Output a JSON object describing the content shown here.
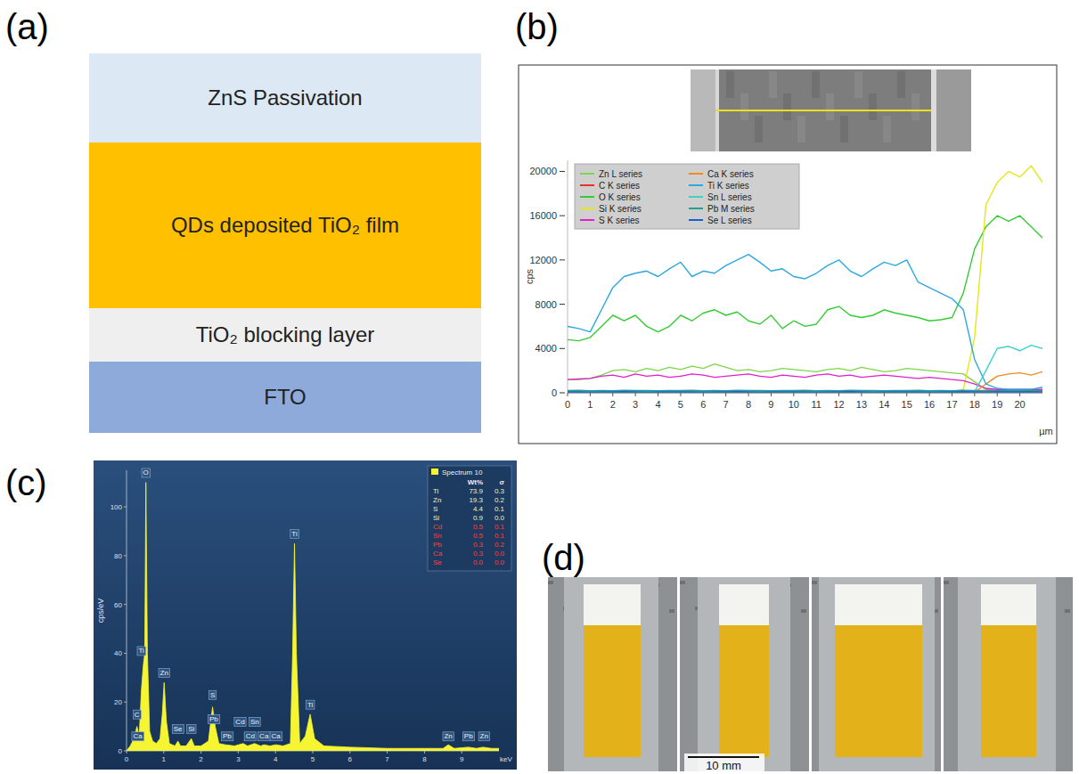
{
  "panel_labels": {
    "a": "(a)",
    "b": "(b)",
    "c": "(c)",
    "d": "(d)"
  },
  "diagram": {
    "layers": [
      {
        "label": "ZnS Passivation",
        "color": "#dce8f4"
      },
      {
        "label": "QDs deposited TiO₂ film",
        "color": "#ffc000"
      },
      {
        "label": "TiO₂ blocking layer",
        "color": "#efefef"
      },
      {
        "label": "FTO",
        "color": "#8eaadb"
      }
    ]
  },
  "chart_data": [
    {
      "type": "line",
      "x_label": "µm",
      "y_label": "cps",
      "x": [
        0,
        0.5,
        1,
        1.5,
        2,
        2.5,
        3,
        3.5,
        4,
        4.5,
        5,
        5.5,
        6,
        6.5,
        7,
        7.5,
        8,
        8.5,
        9,
        9.5,
        10,
        10.5,
        11,
        11.5,
        12,
        12.5,
        13,
        13.5,
        14,
        14.5,
        15,
        15.5,
        16,
        16.5,
        17,
        17.5,
        18,
        18.5,
        19,
        19.5,
        20,
        20.5,
        21
      ],
      "xlim": [
        0,
        21
      ],
      "xticks": [
        0,
        1,
        2,
        3,
        4,
        5,
        6,
        7,
        8,
        9,
        10,
        11,
        12,
        13,
        14,
        15,
        16,
        17,
        18,
        19,
        20
      ],
      "ylim": [
        0,
        21000
      ],
      "yticks": [
        0,
        4000,
        8000,
        12000,
        16000,
        20000
      ],
      "legend": "upper left",
      "series": [
        {
          "name": "Zn L series",
          "color": "#7fd64b",
          "values": [
            1200,
            1200,
            1300,
            1600,
            2000,
            2100,
            1900,
            2200,
            2000,
            2300,
            2100,
            2400,
            2200,
            2600,
            2300,
            2000,
            2100,
            1900,
            2000,
            2200,
            2100,
            2000,
            1900,
            2100,
            2200,
            2000,
            2300,
            2100,
            1900,
            2000,
            2200,
            2100,
            2000,
            1900,
            1800,
            1700,
            1000,
            300,
            200,
            200,
            200,
            200,
            200
          ]
        },
        {
          "name": "C K series",
          "color": "#e8312f",
          "values": [
            150,
            120,
            180,
            140,
            160,
            130,
            170,
            150,
            140,
            160,
            150,
            120,
            180,
            140,
            160,
            130,
            170,
            150,
            140,
            160,
            150,
            120,
            180,
            140,
            160,
            130,
            170,
            150,
            140,
            160,
            150,
            120,
            180,
            140,
            160,
            130,
            170,
            150,
            140,
            160,
            150,
            130,
            160
          ]
        },
        {
          "name": "O K series",
          "color": "#33cc33",
          "values": [
            4800,
            4700,
            5000,
            6000,
            7000,
            6500,
            7000,
            6000,
            5500,
            6000,
            7000,
            6500,
            7200,
            7500,
            7000,
            7300,
            6500,
            6200,
            7000,
            5800,
            6500,
            6000,
            6200,
            7500,
            7800,
            7000,
            6800,
            7000,
            7500,
            7200,
            7000,
            6800,
            6500,
            6600,
            6800,
            9000,
            13000,
            15000,
            16000,
            15500,
            16000,
            15000,
            14000
          ]
        },
        {
          "name": "Si K series",
          "color": "#e6e61a",
          "values": [
            100,
            150,
            120,
            90,
            130,
            100,
            150,
            120,
            90,
            130,
            100,
            150,
            120,
            90,
            130,
            100,
            150,
            120,
            90,
            130,
            100,
            150,
            120,
            90,
            130,
            100,
            150,
            120,
            90,
            130,
            100,
            150,
            120,
            90,
            130,
            300,
            5000,
            17000,
            19000,
            20000,
            19500,
            20500,
            19000
          ]
        },
        {
          "name": "S K series",
          "color": "#e020c8",
          "values": [
            1200,
            1250,
            1300,
            1500,
            1600,
            1400,
            1700,
            1500,
            1600,
            1400,
            1500,
            1700,
            1600,
            1400,
            1500,
            1600,
            1700,
            1500,
            1400,
            1600,
            1500,
            1400,
            1600,
            1700,
            1500,
            1600,
            1400,
            1500,
            1600,
            1500,
            1400,
            1300,
            1400,
            1300,
            1200,
            1100,
            800,
            400,
            300,
            300,
            300,
            300,
            300
          ]
        },
        {
          "name": "Ca K series",
          "color": "#f08c1e",
          "values": [
            50,
            60,
            40,
            50,
            70,
            50,
            40,
            60,
            50,
            50,
            50,
            60,
            40,
            50,
            70,
            50,
            40,
            60,
            50,
            50,
            50,
            60,
            40,
            50,
            70,
            50,
            40,
            60,
            50,
            50,
            50,
            60,
            40,
            50,
            70,
            50,
            40,
            800,
            1500,
            1700,
            1800,
            1600,
            1900
          ]
        },
        {
          "name": "Ti K series",
          "color": "#2ba8e0",
          "values": [
            6000,
            5800,
            5500,
            7500,
            9500,
            10500,
            10800,
            11000,
            10500,
            11200,
            11800,
            10500,
            11000,
            10800,
            11500,
            12000,
            12500,
            11800,
            11000,
            11200,
            10500,
            10300,
            10800,
            11500,
            12000,
            11000,
            10500,
            11200,
            11800,
            11500,
            12000,
            10000,
            9500,
            9000,
            8500,
            7500,
            3000,
            800,
            400,
            300,
            300,
            300,
            500
          ]
        },
        {
          "name": "Sn L series",
          "color": "#3cd2c8",
          "values": [
            100,
            120,
            90,
            110,
            100,
            130,
            90,
            100,
            110,
            100,
            100,
            120,
            90,
            110,
            100,
            130,
            90,
            100,
            110,
            100,
            100,
            120,
            90,
            110,
            100,
            130,
            90,
            100,
            110,
            100,
            100,
            120,
            90,
            110,
            100,
            130,
            90,
            2000,
            4000,
            4200,
            3800,
            4300,
            4000
          ]
        },
        {
          "name": "Pb M series",
          "color": "#20a090",
          "values": [
            200,
            220,
            180,
            210,
            190,
            230,
            200,
            210,
            190,
            200,
            200,
            220,
            180,
            210,
            190,
            230,
            200,
            210,
            190,
            200,
            200,
            220,
            180,
            210,
            190,
            230,
            200,
            210,
            190,
            200,
            200,
            220,
            180,
            210,
            190,
            230,
            200,
            210,
            190,
            200,
            200,
            220,
            180
          ]
        },
        {
          "name": "Se L series",
          "color": "#1a5fd0",
          "values": [
            80,
            90,
            70,
            85,
            75,
            95,
            80,
            70,
            90,
            80,
            80,
            90,
            70,
            85,
            75,
            95,
            80,
            70,
            90,
            80,
            80,
            90,
            70,
            85,
            75,
            95,
            80,
            70,
            90,
            80,
            80,
            90,
            70,
            85,
            75,
            95,
            80,
            70,
            90,
            80,
            80,
            90,
            70
          ]
        }
      ]
    },
    {
      "type": "area",
      "title": "Spectrum 10",
      "x_label": "keV",
      "y_label": "cps/eV",
      "color": "#f5f532",
      "x": [
        0,
        0.1,
        0.2,
        0.28,
        0.34,
        0.4,
        0.45,
        0.49,
        0.52,
        0.56,
        0.62,
        0.7,
        0.8,
        0.9,
        0.96,
        1.01,
        1.07,
        1.15,
        1.3,
        1.38,
        1.45,
        1.6,
        1.74,
        1.82,
        2.0,
        2.2,
        2.31,
        2.38,
        2.48,
        2.65,
        2.9,
        3.13,
        3.25,
        3.44,
        3.6,
        3.69,
        3.85,
        4.01,
        4.2,
        4.4,
        4.46,
        4.51,
        4.56,
        4.65,
        4.8,
        4.93,
        5.05,
        5.3,
        6.0,
        7.0,
        8.0,
        8.5,
        8.64,
        8.8,
        9.18,
        9.4,
        9.57,
        9.8,
        10.0
      ],
      "values": [
        0,
        2,
        5,
        10,
        6,
        25,
        35,
        40,
        110,
        40,
        8,
        4,
        3,
        5,
        15,
        28,
        12,
        3,
        2,
        4,
        2,
        2,
        5,
        2,
        2,
        4,
        18,
        10,
        3,
        2.5,
        2,
        3,
        2,
        3,
        2,
        2.5,
        2,
        2.5,
        2,
        3,
        40,
        85,
        40,
        3,
        6,
        15,
        5,
        2,
        1.5,
        1,
        1,
        1,
        2.5,
        1,
        1.5,
        1,
        1.5,
        1,
        1
      ],
      "xlim": [
        0,
        10
      ],
      "xticks": [
        0,
        1,
        2,
        3,
        4,
        5,
        6,
        7,
        8,
        9
      ],
      "ylim": [
        0,
        115
      ],
      "yticks": [
        0,
        20,
        40,
        60,
        80,
        100
      ],
      "annotations": [
        {
          "label": "C",
          "x": 0.28,
          "y": 14
        },
        {
          "label": "Ca",
          "x": 0.3,
          "y": 5
        },
        {
          "label": "Ti",
          "x": 0.4,
          "y": 40
        },
        {
          "label": "O",
          "x": 0.52,
          "y": 113
        },
        {
          "label": "Zn",
          "x": 1.01,
          "y": 31
        },
        {
          "label": "Se",
          "x": 1.38,
          "y": 8
        },
        {
          "label": "Si",
          "x": 1.74,
          "y": 8
        },
        {
          "label": "S",
          "x": 2.31,
          "y": 22
        },
        {
          "label": "Pb",
          "x": 2.34,
          "y": 12
        },
        {
          "label": "Pb",
          "x": 2.7,
          "y": 5
        },
        {
          "label": "Cd",
          "x": 3.05,
          "y": 11
        },
        {
          "label": "Cd",
          "x": 3.32,
          "y": 5
        },
        {
          "label": "Sn",
          "x": 3.44,
          "y": 11
        },
        {
          "label": "Ca",
          "x": 3.69,
          "y": 5
        },
        {
          "label": "Ca",
          "x": 4.01,
          "y": 5
        },
        {
          "label": "Ti",
          "x": 4.51,
          "y": 88
        },
        {
          "label": "Ti",
          "x": 4.93,
          "y": 18
        },
        {
          "label": "Zn",
          "x": 8.64,
          "y": 5
        },
        {
          "label": "Pb",
          "x": 9.18,
          "y": 5
        },
        {
          "label": "Zn",
          "x": 9.6,
          "y": 5
        }
      ],
      "table": {
        "columns": [
          "Wt%",
          "σ"
        ],
        "rows": [
          {
            "cells": [
              "Ti",
              "73.9",
              "0.3"
            ],
            "color": "#f0f0d0"
          },
          {
            "cells": [
              "Zn",
              "19.3",
              "0.2"
            ],
            "color": "#f0f0d0"
          },
          {
            "cells": [
              "S",
              "4.4",
              "0.1"
            ],
            "color": "#f0f0d0"
          },
          {
            "cells": [
              "Si",
              "0.9",
              "0.0"
            ],
            "color": "#f0f0d0"
          },
          {
            "cells": [
              "Cd",
              "0.5",
              "0.1"
            ],
            "color": "#ff4040"
          },
          {
            "cells": [
              "Sn",
              "0.5",
              "0.1"
            ],
            "color": "#ff4040"
          },
          {
            "cells": [
              "Pb",
              "0.3",
              "0.2"
            ],
            "color": "#ff4040"
          },
          {
            "cells": [
              "Ca",
              "0.3",
              "0.0"
            ],
            "color": "#ff4040"
          },
          {
            "cells": [
              "Se",
              "0.0",
              "0.0"
            ],
            "color": "#ff4040"
          }
        ]
      }
    }
  ],
  "photos": {
    "scale_bar": "10 mm"
  }
}
